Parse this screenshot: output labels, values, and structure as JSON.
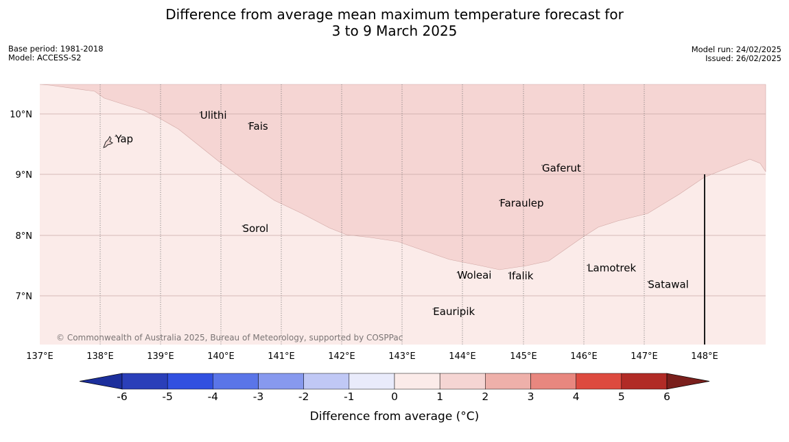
{
  "title": {
    "line1": "Difference from average mean maximum temperature forecast for",
    "line2": "3 to 9 March 2025"
  },
  "meta_left": {
    "base_period": "Base period: 1981-2018",
    "model": "Model: ACCESS-S2"
  },
  "meta_right": {
    "model_run": "Model run: 24/02/2025",
    "issued": "Issued: 26/02/2025"
  },
  "map": {
    "lon_range": [
      137,
      149
    ],
    "lat_range": [
      6.2,
      10.5
    ],
    "lon_ticks": [
      "137°E",
      "138°E",
      "139°E",
      "140°E",
      "141°E",
      "142°E",
      "143°E",
      "144°E",
      "145°E",
      "146°E",
      "147°E",
      "148°E"
    ],
    "lat_ticks": [
      "10°N",
      "9°N",
      "8°N",
      "7°N"
    ],
    "colors": {
      "band_0_1": "#fbebe9",
      "band_1_2": "#f5d5d3"
    },
    "places": [
      {
        "name": "Yap",
        "lon": 138.25,
        "lat": 9.53
      },
      {
        "name": "Ulithi",
        "lon": 139.65,
        "lat": 9.92
      },
      {
        "name": "Fais",
        "lon": 140.45,
        "lat": 9.74
      },
      {
        "name": "Gaferut",
        "lon": 145.3,
        "lat": 9.05
      },
      {
        "name": "Faraulep",
        "lon": 144.6,
        "lat": 8.47
      },
      {
        "name": "Sorol",
        "lon": 140.35,
        "lat": 8.05
      },
      {
        "name": "Lamotrek",
        "lon": 146.05,
        "lat": 7.4
      },
      {
        "name": "Woleai",
        "lon": 143.9,
        "lat": 7.28
      },
      {
        "name": "Ifalik",
        "lon": 144.75,
        "lat": 7.27
      },
      {
        "name": "Satawal",
        "lon": 147.05,
        "lat": 7.13
      },
      {
        "name": "Eauripik",
        "lon": 143.5,
        "lat": 6.68
      }
    ],
    "copyright": "© Commonwealth of Australia 2025, Bureau of Meteorology, supported by COSPPac"
  },
  "colorbar": {
    "ticks": [
      "-6",
      "-5",
      "-4",
      "-3",
      "-2",
      "-1",
      "0",
      "1",
      "2",
      "3",
      "4",
      "5",
      "6"
    ],
    "colors": [
      "#1c2f9c",
      "#2a3fb9",
      "#3150e0",
      "#5a75e8",
      "#8799ee",
      "#c0c8f5",
      "#e9ebfb",
      "#fbebe9",
      "#f5d5d3",
      "#eeb0aa",
      "#e8877f",
      "#dd4a3f",
      "#b12b26",
      "#7a1f1c"
    ],
    "label": "Difference from average (°C)"
  }
}
